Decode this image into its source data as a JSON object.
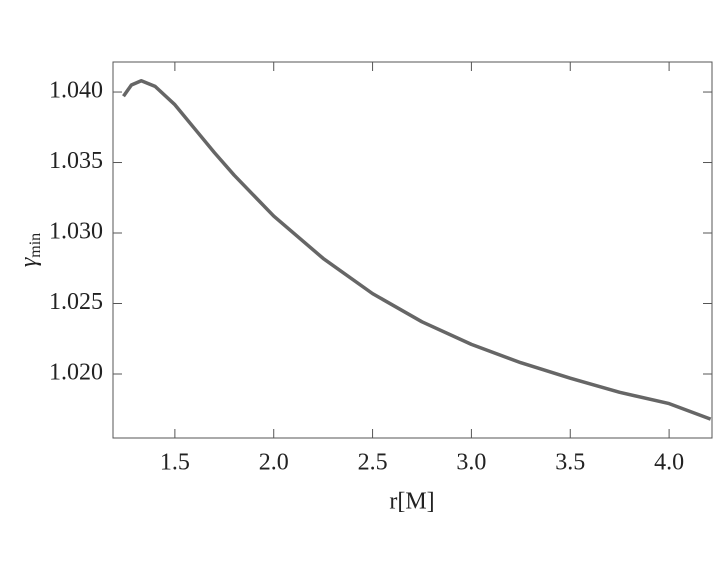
{
  "chart_data": {
    "type": "line",
    "xlabel": "r[M]",
    "ylabel": {
      "symbol": "γ",
      "subscript": "min"
    },
    "x": [
      1.24,
      1.28,
      1.33,
      1.4,
      1.5,
      1.6,
      1.7,
      1.8,
      2.0,
      2.25,
      2.5,
      2.75,
      3.0,
      3.25,
      3.5,
      3.75,
      4.0,
      4.21
    ],
    "series": [
      {
        "color": "#666666",
        "values": [
          1.0397,
          1.0405,
          1.0408,
          1.0404,
          1.0391,
          1.0374,
          1.0357,
          1.0341,
          1.0312,
          1.0282,
          1.0257,
          1.0237,
          1.0221,
          1.0208,
          1.0197,
          1.0187,
          1.0179,
          1.0168
        ]
      }
    ],
    "xlim": [
      1.187,
      4.217
    ],
    "ylim": [
      1.01546,
      1.04213
    ],
    "xticks": [
      1.5,
      {
        "value": 2,
        "label": "2.0"
      },
      2.5,
      {
        "value": 3,
        "label": "3.0"
      },
      3.5,
      {
        "value": 4,
        "label": "4.0"
      }
    ],
    "yticks": [
      {
        "value": 1.02,
        "label": "1.020"
      },
      {
        "value": 1.025,
        "label": "1.025"
      },
      {
        "value": 1.03,
        "label": "1.030"
      },
      {
        "value": 1.035,
        "label": "1.035"
      },
      {
        "value": 1.04,
        "label": "1.040"
      }
    ],
    "grid": false
  }
}
